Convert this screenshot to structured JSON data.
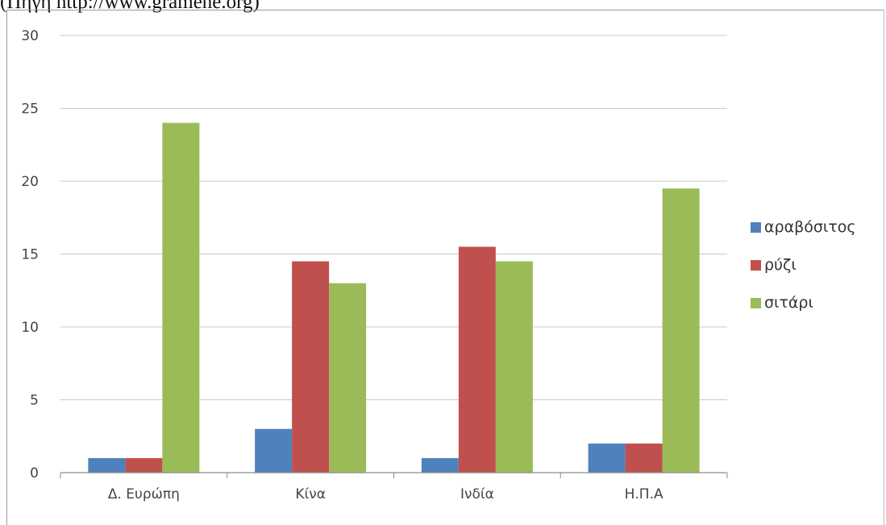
{
  "caption": "(Πηγή http://www.gramene.org)",
  "chart_data": {
    "type": "bar",
    "categories": [
      "Δ. Ευρώπη",
      "Κίνα",
      "Ινδία",
      "Η.Π.Α"
    ],
    "series": [
      {
        "name": "αραβόσιτος",
        "values": [
          1,
          3,
          1,
          2
        ],
        "color": "#4f81bd"
      },
      {
        "name": "ρύζι",
        "values": [
          1,
          14.5,
          15.5,
          2
        ],
        "color": "#c0504d"
      },
      {
        "name": "σιτάρι",
        "values": [
          24,
          13,
          14.5,
          19.5
        ],
        "color": "#9bbb59"
      }
    ],
    "ylim": [
      0,
      30
    ],
    "yticks": [
      0,
      5,
      10,
      15,
      20,
      25,
      30
    ],
    "grid": true,
    "legend_position": "right"
  }
}
